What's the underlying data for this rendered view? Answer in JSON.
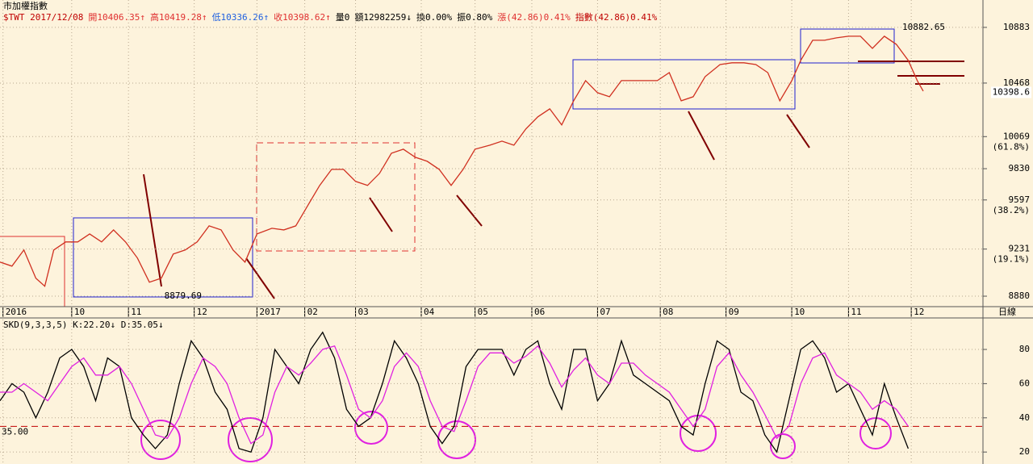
{
  "chart_data": [
    {
      "type": "line",
      "title": "市加權指數",
      "period_label": "日線",
      "header_info": [
        {
          "text": "$TWT 2017/12/08",
          "color": "#c00000"
        },
        {
          "text": "開10406.35↑",
          "color": "#e03030"
        },
        {
          "text": "高10419.28↑",
          "color": "#e03030"
        },
        {
          "text": "低10336.26↑",
          "color": "#2060e0"
        },
        {
          "text": "收10398.62↑",
          "color": "#e03030"
        },
        {
          "text": "量0",
          "color": "#000000"
        },
        {
          "text": "額12982259↓",
          "color": "#000000"
        },
        {
          "text": "換0.00%",
          "color": "#000000"
        },
        {
          "text": "振0.80%",
          "color": "#000000"
        },
        {
          "text": "漲(42.86)0.41%",
          "color": "#e03030"
        },
        {
          "text": "指數(42.86)0.41%",
          "color": "#c00000"
        }
      ],
      "x": [
        0,
        4,
        8,
        12,
        15,
        18,
        22,
        26,
        30,
        34,
        38,
        42,
        46,
        50,
        54,
        58,
        62,
        66,
        70,
        74,
        78,
        82,
        86,
        91,
        95,
        99,
        103,
        107,
        111,
        115,
        119,
        123,
        127,
        131,
        135,
        139,
        143,
        147,
        151,
        155,
        159,
        164,
        168,
        172,
        176,
        180,
        184,
        188,
        192,
        196,
        200,
        204,
        208,
        212,
        216,
        220,
        224,
        228,
        232,
        236,
        241,
        245,
        249,
        253,
        257,
        261,
        265,
        268,
        272,
        276,
        280,
        284,
        288,
        292,
        296,
        300,
        304,
        307,
        309
      ],
      "series": [
        {
          "name": "收",
          "color": "#d03020",
          "values": [
            9134,
            9104,
            9224,
            9014,
            8954,
            9224,
            9284,
            9284,
            9344,
            9284,
            9374,
            9284,
            9164,
            8984,
            9014,
            9194,
            9224,
            9284,
            9404,
            9374,
            9224,
            9134,
            9344,
            9386,
            9374,
            9404,
            9555,
            9705,
            9825,
            9825,
            9735,
            9705,
            9795,
            9945,
            9975,
            9915,
            9885,
            9825,
            9705,
            9825,
            9975,
            10005,
            10035,
            10005,
            10126,
            10216,
            10276,
            10156,
            10336,
            10486,
            10396,
            10366,
            10486,
            10486,
            10486,
            10486,
            10546,
            10336,
            10366,
            10516,
            10606,
            10619,
            10619,
            10606,
            10546,
            10336,
            10486,
            10637,
            10787,
            10787,
            10805,
            10817,
            10817,
            10727,
            10817,
            10757,
            10637,
            10486,
            10408
          ]
        }
      ],
      "xlim": [
        0,
        329
      ],
      "xticks": [
        {
          "value": 1,
          "label": "2016"
        },
        {
          "value": 24,
          "label": "10"
        },
        {
          "value": 43,
          "label": "11"
        },
        {
          "value": 65,
          "label": "12"
        },
        {
          "value": 86,
          "label": "2017"
        },
        {
          "value": 102,
          "label": "02"
        },
        {
          "value": 119,
          "label": "03"
        },
        {
          "value": 141,
          "label": "04"
        },
        {
          "value": 159,
          "label": "05"
        },
        {
          "value": 178,
          "label": "06"
        },
        {
          "value": 200,
          "label": "07"
        },
        {
          "value": 221,
          "label": "08"
        },
        {
          "value": 243,
          "label": "09"
        },
        {
          "value": 265,
          "label": "10"
        },
        {
          "value": 284,
          "label": "11"
        },
        {
          "value": 305,
          "label": "12"
        }
      ],
      "ylim": [
        8802,
        11087
      ],
      "yticks": [
        8880,
        9231,
        9597,
        9830,
        10069,
        10468,
        10883
      ],
      "level_labels": [
        {
          "value": 10069,
          "label": "(61.8%)"
        },
        {
          "value": 9597,
          "label": "(38.2%)"
        },
        {
          "value": 9231,
          "label": "(19.1%)"
        }
      ],
      "point_labels": [
        {
          "x": 302,
          "y": 10882.65
        },
        {
          "x": 55,
          "y": 8879.69
        }
      ],
      "last_price": 10398.6,
      "grid": true
    },
    {
      "type": "line",
      "title": "SKD(9,3,3,5) K:22.20↓ D:35.05↓",
      "x": [
        0,
        4,
        8,
        12,
        16,
        20,
        24,
        28,
        32,
        36,
        40,
        44,
        48,
        52,
        56,
        60,
        64,
        68,
        72,
        76,
        80,
        84,
        88,
        92,
        96,
        100,
        104,
        108,
        112,
        116,
        120,
        124,
        128,
        132,
        136,
        140,
        144,
        148,
        152,
        156,
        160,
        164,
        168,
        172,
        176,
        180,
        184,
        188,
        192,
        196,
        200,
        204,
        208,
        212,
        216,
        220,
        224,
        228,
        232,
        236,
        240,
        244,
        248,
        252,
        256,
        260,
        264,
        268,
        272,
        276,
        280,
        284,
        288,
        292,
        296,
        300,
        304
      ],
      "series": [
        {
          "name": "K",
          "color": "#000000",
          "values": [
            50,
            60,
            55,
            40,
            55,
            75,
            80,
            70,
            50,
            75,
            70,
            40,
            30,
            22,
            30,
            60,
            85,
            75,
            55,
            45,
            22,
            20,
            40,
            80,
            70,
            60,
            80,
            90,
            75,
            45,
            35,
            40,
            60,
            85,
            75,
            60,
            35,
            25,
            35,
            70,
            80,
            80,
            80,
            65,
            80,
            85,
            60,
            45,
            80,
            80,
            50,
            60,
            85,
            65,
            60,
            55,
            50,
            35,
            30,
            60,
            85,
            80,
            55,
            50,
            30,
            20,
            50,
            80,
            85,
            75,
            55,
            60,
            45,
            30,
            60,
            40,
            22
          ]
        },
        {
          "name": "D",
          "color": "#e020e0",
          "values": [
            55,
            55,
            60,
            55,
            50,
            60,
            70,
            75,
            65,
            65,
            70,
            60,
            45,
            30,
            28,
            40,
            60,
            75,
            70,
            60,
            40,
            25,
            30,
            55,
            70,
            65,
            72,
            80,
            82,
            65,
            45,
            40,
            50,
            70,
            78,
            70,
            50,
            35,
            32,
            50,
            70,
            78,
            78,
            72,
            76,
            82,
            72,
            58,
            68,
            75,
            65,
            60,
            72,
            72,
            65,
            60,
            55,
            45,
            35,
            45,
            70,
            78,
            65,
            55,
            42,
            28,
            35,
            60,
            75,
            78,
            65,
            60,
            55,
            45,
            50,
            45,
            35
          ]
        }
      ],
      "xlim": [
        0,
        329
      ],
      "ylim": [
        13,
        97
      ],
      "yticks": [
        20,
        40,
        60,
        80
      ],
      "reference": {
        "value": 35,
        "label": "35.00"
      },
      "grid": true
    }
  ]
}
